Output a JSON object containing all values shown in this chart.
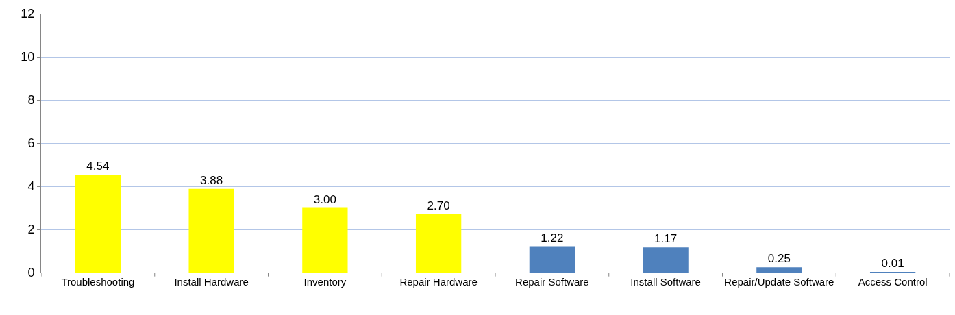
{
  "chart_data": {
    "type": "bar",
    "categories": [
      "Troubleshooting",
      "Install Hardware",
      "Inventory",
      "Repair Hardware",
      "Repair Software",
      "Install Software",
      "Repair/Update Software",
      "Access Control"
    ],
    "values": [
      4.54,
      3.88,
      3.0,
      2.7,
      1.22,
      1.17,
      0.25,
      0.01
    ],
    "value_labels": [
      "4.54",
      "3.88",
      "3.00",
      "2.70",
      "1.22",
      "1.17",
      "0.25",
      "0.01"
    ],
    "colors": [
      "#ffff00",
      "#ffff00",
      "#ffff00",
      "#ffff00",
      "#4f81bd",
      "#4f81bd",
      "#4f81bd",
      "#4f81bd"
    ],
    "ylim": [
      0,
      12
    ],
    "yticks": [
      0,
      2,
      4,
      6,
      8,
      10,
      12
    ],
    "grid": "y",
    "legend": false
  }
}
